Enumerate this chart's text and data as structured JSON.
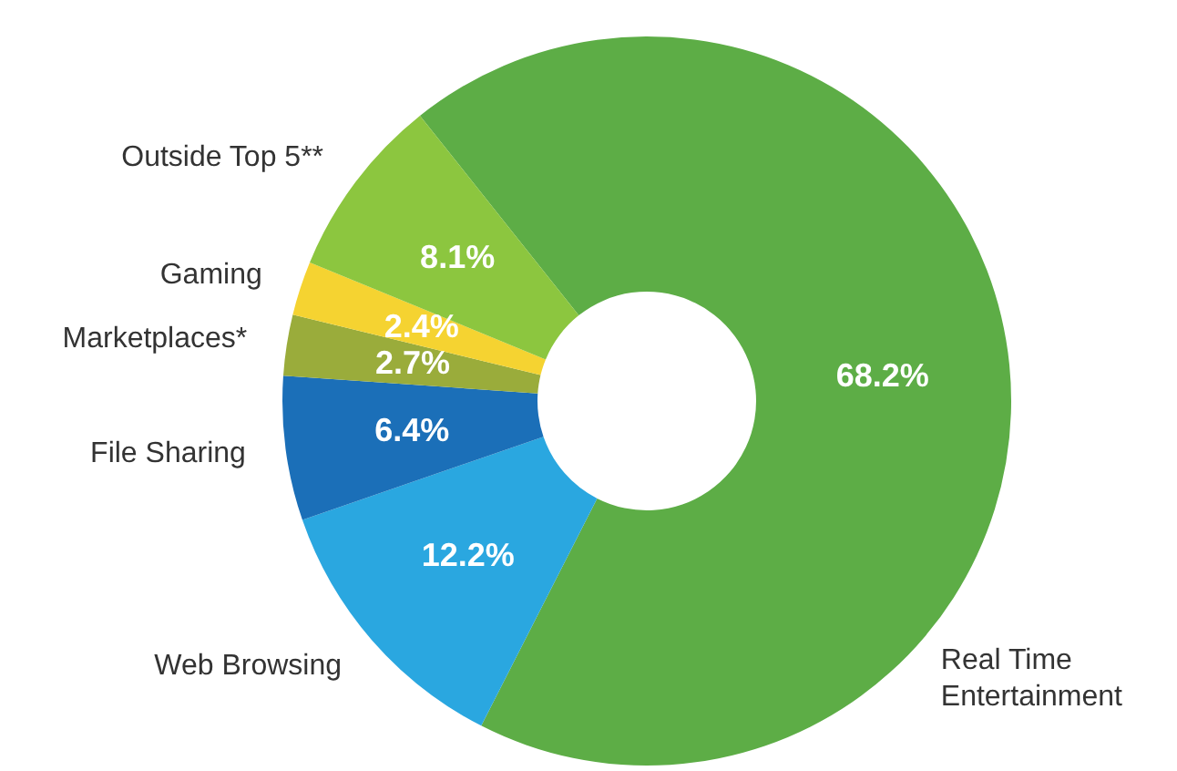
{
  "chart_data": {
    "type": "donut",
    "categories": [
      "Real Time Entertainment",
      "Web Browsing",
      "File Sharing",
      "Marketplaces*",
      "Gaming",
      "Outside Top 5**"
    ],
    "values": [
      68.2,
      12.2,
      6.4,
      2.7,
      2.4,
      8.1
    ],
    "colors": [
      "#5dad46",
      "#2aa7e0",
      "#1b6fb8",
      "#9aac3b",
      "#f5d331",
      "#8cc63f"
    ],
    "value_labels": [
      "68.2%",
      "12.2%",
      "6.4%",
      "2.7%",
      "2.4%",
      "8.1%"
    ],
    "legend": false
  }
}
